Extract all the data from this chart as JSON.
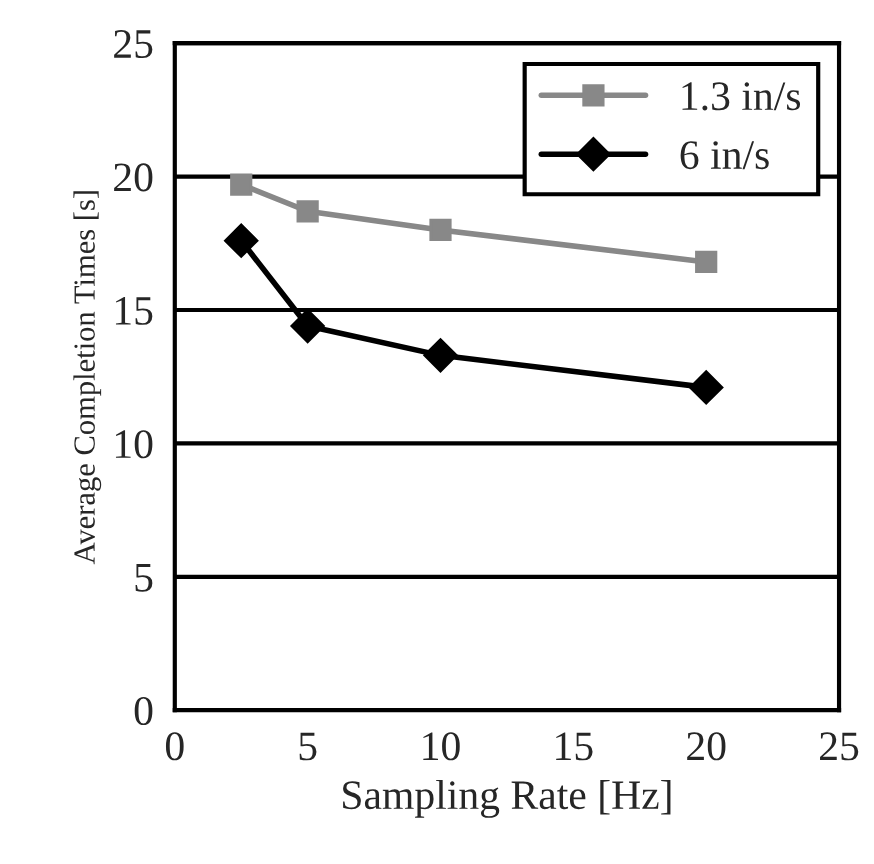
{
  "chart_data": {
    "type": "line",
    "xlabel": "Sampling Rate [Hz]",
    "ylabel": "Average Completion Times [s]",
    "xlim": [
      0,
      25
    ],
    "xticks": [
      0,
      5,
      10,
      15,
      20,
      25
    ],
    "ylim": [
      0,
      25
    ],
    "yticks": [
      0,
      5,
      10,
      15,
      20,
      25
    ],
    "grid": "y",
    "legend": "top right",
    "series": [
      {
        "name": "1.3 in/s",
        "color": "#888888",
        "marker": "square",
        "x": [
          2.5,
          5,
          10,
          20
        ],
        "values": [
          19.7,
          18.7,
          18.0,
          16.8
        ]
      },
      {
        "name": "6 in/s",
        "color": "#000000",
        "marker": "diamond",
        "x": [
          2.5,
          5,
          10,
          20
        ],
        "values": [
          17.6,
          14.4,
          13.3,
          12.1
        ]
      }
    ]
  }
}
